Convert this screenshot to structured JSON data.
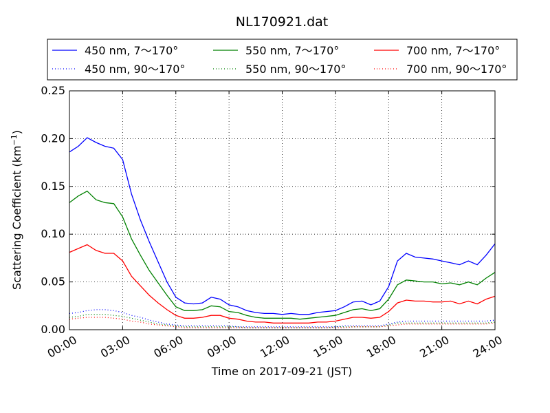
{
  "chart_data": {
    "type": "line",
    "title": "NL170921.dat",
    "xlabel": "Time on 2017-09-21 (JST)",
    "ylabel": "Scattering Coefficient (km",
    "ylabel_sup": "−1",
    "ylabel_close": ")",
    "xlim": [
      0,
      24
    ],
    "ylim": [
      0,
      0.25
    ],
    "grid": true,
    "legend_position": "top",
    "x_ticks": [
      0,
      3,
      6,
      9,
      12,
      15,
      18,
      21,
      24
    ],
    "x_tick_labels": [
      "00:00",
      "03:00",
      "06:00",
      "09:00",
      "12:00",
      "15:00",
      "18:00",
      "21:00",
      "24:00"
    ],
    "y_ticks": [
      0,
      0.05,
      0.1,
      0.15,
      0.2,
      0.25
    ],
    "y_tick_labels": [
      "0.00",
      "0.05",
      "0.10",
      "0.15",
      "0.20",
      "0.25"
    ],
    "x": [
      0,
      0.5,
      1,
      1.5,
      2,
      2.5,
      3,
      3.5,
      4,
      4.5,
      5,
      5.5,
      6,
      6.5,
      7,
      7.5,
      8,
      8.5,
      9,
      9.5,
      10,
      10.5,
      11,
      11.5,
      12,
      12.5,
      13,
      13.5,
      14,
      14.5,
      15,
      15.5,
      16,
      16.5,
      17,
      17.5,
      18,
      18.5,
      19,
      19.5,
      20,
      20.5,
      21,
      21.5,
      22,
      22.5,
      23,
      23.5,
      24
    ],
    "series": [
      {
        "name": "450 nm, 7～170°",
        "color": "#0000ff",
        "style": "solid",
        "values": [
          0.186,
          0.192,
          0.201,
          0.196,
          0.192,
          0.19,
          0.178,
          0.142,
          0.115,
          0.092,
          0.071,
          0.05,
          0.034,
          0.028,
          0.027,
          0.028,
          0.034,
          0.032,
          0.026,
          0.024,
          0.02,
          0.018,
          0.017,
          0.017,
          0.016,
          0.017,
          0.016,
          0.016,
          0.018,
          0.019,
          0.02,
          0.024,
          0.029,
          0.03,
          0.026,
          0.03,
          0.045,
          0.072,
          0.08,
          0.076,
          0.075,
          0.074,
          0.072,
          0.07,
          0.068,
          0.072,
          0.068,
          0.078,
          0.09
        ]
      },
      {
        "name": "450 nm, 90～170°",
        "color": "#0000ff",
        "style": "dotted",
        "values": [
          0.017,
          0.018,
          0.02,
          0.021,
          0.021,
          0.02,
          0.018,
          0.015,
          0.013,
          0.01,
          0.008,
          0.006,
          0.005,
          0.004,
          0.004,
          0.004,
          0.004,
          0.004,
          0.004,
          0.003,
          0.003,
          0.003,
          0.003,
          0.003,
          0.003,
          0.003,
          0.003,
          0.003,
          0.003,
          0.003,
          0.003,
          0.004,
          0.004,
          0.004,
          0.004,
          0.004,
          0.006,
          0.008,
          0.009,
          0.009,
          0.009,
          0.009,
          0.009,
          0.009,
          0.009,
          0.009,
          0.009,
          0.009,
          0.01
        ]
      },
      {
        "name": "550 nm, 7～170°",
        "color": "#008000",
        "style": "solid",
        "values": [
          0.133,
          0.14,
          0.145,
          0.136,
          0.133,
          0.132,
          0.118,
          0.095,
          0.078,
          0.062,
          0.049,
          0.036,
          0.024,
          0.02,
          0.02,
          0.021,
          0.025,
          0.024,
          0.019,
          0.018,
          0.015,
          0.013,
          0.012,
          0.012,
          0.012,
          0.012,
          0.011,
          0.012,
          0.013,
          0.014,
          0.015,
          0.018,
          0.021,
          0.022,
          0.02,
          0.022,
          0.032,
          0.047,
          0.052,
          0.051,
          0.05,
          0.05,
          0.048,
          0.049,
          0.047,
          0.05,
          0.047,
          0.054,
          0.06
        ]
      },
      {
        "name": "550 nm, 90～170°",
        "color": "#008000",
        "style": "dotted",
        "values": [
          0.013,
          0.014,
          0.016,
          0.016,
          0.016,
          0.015,
          0.014,
          0.012,
          0.01,
          0.008,
          0.006,
          0.005,
          0.004,
          0.003,
          0.003,
          0.003,
          0.003,
          0.003,
          0.003,
          0.003,
          0.002,
          0.002,
          0.002,
          0.002,
          0.002,
          0.002,
          0.002,
          0.002,
          0.002,
          0.002,
          0.003,
          0.003,
          0.003,
          0.003,
          0.003,
          0.003,
          0.005,
          0.007,
          0.007,
          0.007,
          0.007,
          0.007,
          0.007,
          0.007,
          0.007,
          0.007,
          0.007,
          0.007,
          0.008
        ]
      },
      {
        "name": "700 nm, 7～170°",
        "color": "#ff0000",
        "style": "solid",
        "values": [
          0.081,
          0.085,
          0.089,
          0.083,
          0.08,
          0.08,
          0.072,
          0.056,
          0.046,
          0.036,
          0.028,
          0.021,
          0.015,
          0.012,
          0.012,
          0.013,
          0.015,
          0.015,
          0.012,
          0.011,
          0.009,
          0.008,
          0.008,
          0.007,
          0.007,
          0.007,
          0.007,
          0.007,
          0.008,
          0.008,
          0.009,
          0.011,
          0.013,
          0.013,
          0.012,
          0.013,
          0.019,
          0.028,
          0.031,
          0.03,
          0.03,
          0.029,
          0.029,
          0.03,
          0.027,
          0.03,
          0.027,
          0.032,
          0.035
        ]
      },
      {
        "name": "700 nm, 90～170°",
        "color": "#ff0000",
        "style": "dotted",
        "values": [
          0.011,
          0.012,
          0.013,
          0.013,
          0.013,
          0.012,
          0.011,
          0.009,
          0.008,
          0.006,
          0.005,
          0.004,
          0.003,
          0.002,
          0.002,
          0.002,
          0.002,
          0.002,
          0.002,
          0.002,
          0.002,
          0.002,
          0.002,
          0.002,
          0.002,
          0.002,
          0.002,
          0.002,
          0.002,
          0.002,
          0.002,
          0.002,
          0.003,
          0.003,
          0.003,
          0.003,
          0.004,
          0.005,
          0.006,
          0.006,
          0.006,
          0.006,
          0.006,
          0.006,
          0.006,
          0.006,
          0.006,
          0.006,
          0.007
        ]
      }
    ]
  }
}
